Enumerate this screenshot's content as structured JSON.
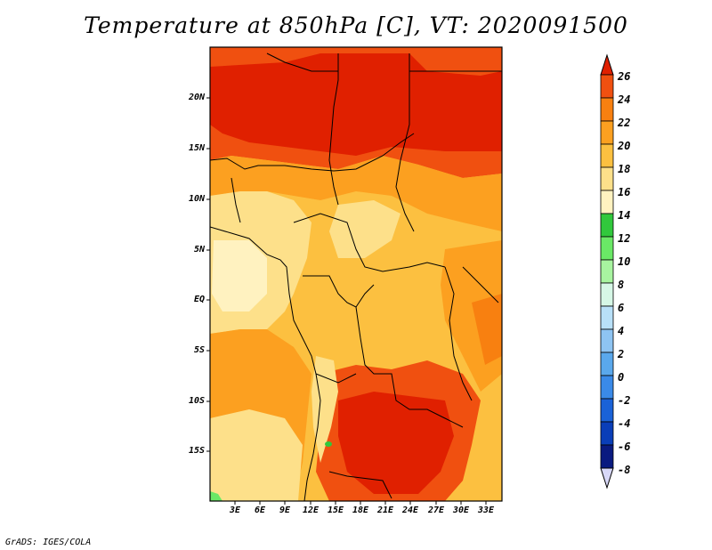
{
  "title": "Temperature at 850hPa [C], VT: 2020091500",
  "credit": "GrADS: IGES/COLA",
  "map": {
    "lat_labels": [
      "20N",
      "15N",
      "10N",
      "5N",
      "EQ",
      "5S",
      "10S",
      "15S"
    ],
    "lon_labels": [
      "3E",
      "6E",
      "9E",
      "12E",
      "15E",
      "18E",
      "21E",
      "24E",
      "27E",
      "30E",
      "33E"
    ]
  },
  "colorbar": {
    "labels": [
      "26",
      "24",
      "22",
      "20",
      "18",
      "16",
      "14",
      "12",
      "10",
      "8",
      "6",
      "4",
      "2",
      "0",
      "-2",
      "-4",
      "-6",
      "-8"
    ],
    "colors": [
      "#e02000",
      "#f05010",
      "#f88010",
      "#fca020",
      "#fcc040",
      "#fde08a",
      "#fff2c0",
      "#31c83c",
      "#6ae866",
      "#a8f4a0",
      "#d6f7e6",
      "#b8e0f8",
      "#8ec4f2",
      "#5aa8ec",
      "#3a8ae8",
      "#1a62d8",
      "#0a3eb8",
      "#0a1a80",
      "#d8d8f8"
    ]
  }
}
